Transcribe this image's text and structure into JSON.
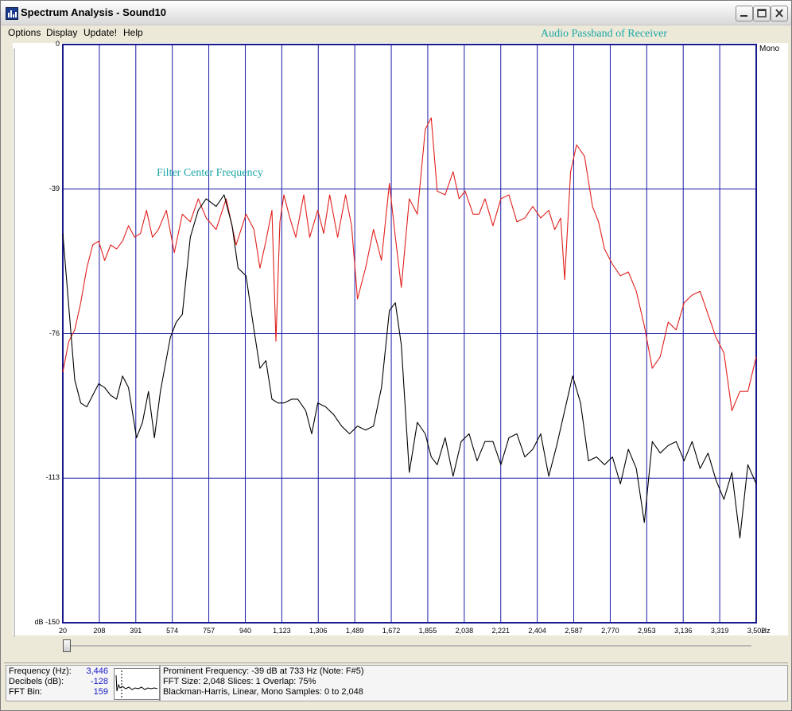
{
  "window": {
    "title": "Spectrum Analysis - Sound10",
    "buttons": [
      "minimize",
      "maximize",
      "close"
    ]
  },
  "menu": {
    "items": [
      "Options",
      "Display",
      "Update!",
      "Help"
    ]
  },
  "annotations": {
    "passband": "Audio Passband of Receiver",
    "center": "Filter Center Frequency"
  },
  "channel_label": "Mono",
  "chart_data": {
    "type": "line",
    "x_unit": "Hz",
    "y_unit": "dB",
    "xlim": [
      20,
      3502
    ],
    "ylim": [
      -150,
      0
    ],
    "y_ticks": [
      "0",
      "-39",
      "-76",
      "-113",
      "dB -150"
    ],
    "x_ticks": [
      "20",
      "208",
      "391",
      "574",
      "757",
      "940",
      "1,123",
      "1,306",
      "1,489",
      "1,672",
      "1,855",
      "2,038",
      "2,221",
      "2,404",
      "2,587",
      "2,770",
      "2,953",
      "3,136",
      "3,319",
      "3,502"
    ],
    "grid": true,
    "series": [
      {
        "color": "#e0201c",
        "points": [
          [
            20,
            -85
          ],
          [
            50,
            -77
          ],
          [
            80,
            -74
          ],
          [
            110,
            -67
          ],
          [
            140,
            -58
          ],
          [
            170,
            -52
          ],
          [
            200,
            -51
          ],
          [
            230,
            -56
          ],
          [
            260,
            -52
          ],
          [
            290,
            -53
          ],
          [
            320,
            -51
          ],
          [
            350,
            -47
          ],
          [
            380,
            -50
          ],
          [
            410,
            -49
          ],
          [
            440,
            -43
          ],
          [
            470,
            -50
          ],
          [
            500,
            -48
          ],
          [
            540,
            -43
          ],
          [
            580,
            -54
          ],
          [
            620,
            -44
          ],
          [
            660,
            -46
          ],
          [
            700,
            -40
          ],
          [
            740,
            -45
          ],
          [
            790,
            -48
          ],
          [
            840,
            -40
          ],
          [
            890,
            -52
          ],
          [
            940,
            -44
          ],
          [
            980,
            -48
          ],
          [
            1010,
            -58
          ],
          [
            1040,
            -51
          ],
          [
            1070,
            -43
          ],
          [
            1090,
            -77
          ],
          [
            1110,
            -46
          ],
          [
            1130,
            -39
          ],
          [
            1160,
            -45
          ],
          [
            1190,
            -50
          ],
          [
            1230,
            -39
          ],
          [
            1260,
            -50
          ],
          [
            1300,
            -43
          ],
          [
            1330,
            -49
          ],
          [
            1360,
            -39
          ],
          [
            1400,
            -50
          ],
          [
            1440,
            -39
          ],
          [
            1470,
            -47
          ],
          [
            1500,
            -66
          ],
          [
            1540,
            -58
          ],
          [
            1580,
            -48
          ],
          [
            1620,
            -56
          ],
          [
            1660,
            -36
          ],
          [
            1690,
            -50
          ],
          [
            1720,
            -63
          ],
          [
            1760,
            -40
          ],
          [
            1800,
            -44
          ],
          [
            1840,
            -22
          ],
          [
            1870,
            -19
          ],
          [
            1900,
            -38
          ],
          [
            1940,
            -39
          ],
          [
            1980,
            -33
          ],
          [
            2010,
            -40
          ],
          [
            2040,
            -38
          ],
          [
            2080,
            -44
          ],
          [
            2110,
            -44
          ],
          [
            2140,
            -40
          ],
          [
            2180,
            -47
          ],
          [
            2220,
            -40
          ],
          [
            2260,
            -39
          ],
          [
            2300,
            -46
          ],
          [
            2340,
            -45
          ],
          [
            2380,
            -42
          ],
          [
            2420,
            -45
          ],
          [
            2460,
            -43
          ],
          [
            2490,
            -48
          ],
          [
            2520,
            -45
          ],
          [
            2540,
            -61
          ],
          [
            2570,
            -33
          ],
          [
            2600,
            -26
          ],
          [
            2640,
            -29
          ],
          [
            2680,
            -42
          ],
          [
            2710,
            -46
          ],
          [
            2740,
            -53
          ],
          [
            2780,
            -57
          ],
          [
            2820,
            -60
          ],
          [
            2860,
            -59
          ],
          [
            2900,
            -64
          ],
          [
            2940,
            -73
          ],
          [
            2980,
            -84
          ],
          [
            3020,
            -81
          ],
          [
            3060,
            -72
          ],
          [
            3100,
            -74
          ],
          [
            3140,
            -67
          ],
          [
            3180,
            -65
          ],
          [
            3220,
            -64
          ],
          [
            3260,
            -70
          ],
          [
            3300,
            -76
          ],
          [
            3340,
            -80
          ],
          [
            3380,
            -95
          ],
          [
            3420,
            -90
          ],
          [
            3460,
            -90
          ],
          [
            3502,
            -81
          ]
        ]
      },
      {
        "color": "#000000",
        "points": [
          [
            20,
            -49
          ],
          [
            50,
            -68
          ],
          [
            80,
            -87
          ],
          [
            110,
            -93
          ],
          [
            140,
            -94
          ],
          [
            170,
            -91
          ],
          [
            200,
            -88
          ],
          [
            230,
            -89
          ],
          [
            260,
            -91
          ],
          [
            290,
            -92
          ],
          [
            320,
            -86
          ],
          [
            350,
            -89
          ],
          [
            390,
            -102
          ],
          [
            420,
            -98
          ],
          [
            450,
            -90
          ],
          [
            480,
            -102
          ],
          [
            510,
            -90
          ],
          [
            560,
            -76
          ],
          [
            590,
            -72
          ],
          [
            620,
            -70
          ],
          [
            660,
            -50
          ],
          [
            700,
            -43
          ],
          [
            740,
            -40
          ],
          [
            790,
            -42
          ],
          [
            830,
            -39
          ],
          [
            870,
            -47
          ],
          [
            900,
            -58
          ],
          [
            940,
            -60
          ],
          [
            980,
            -74
          ],
          [
            1010,
            -84
          ],
          [
            1040,
            -82
          ],
          [
            1070,
            -92
          ],
          [
            1100,
            -93
          ],
          [
            1130,
            -93
          ],
          [
            1170,
            -92
          ],
          [
            1200,
            -92
          ],
          [
            1240,
            -95
          ],
          [
            1270,
            -101
          ],
          [
            1300,
            -93
          ],
          [
            1340,
            -94
          ],
          [
            1380,
            -96
          ],
          [
            1420,
            -99
          ],
          [
            1460,
            -101
          ],
          [
            1500,
            -99
          ],
          [
            1540,
            -100
          ],
          [
            1580,
            -99
          ],
          [
            1620,
            -89
          ],
          [
            1660,
            -69
          ],
          [
            1690,
            -67
          ],
          [
            1720,
            -78
          ],
          [
            1760,
            -111
          ],
          [
            1800,
            -98
          ],
          [
            1840,
            -101
          ],
          [
            1870,
            -107
          ],
          [
            1900,
            -109
          ],
          [
            1940,
            -102
          ],
          [
            1980,
            -112
          ],
          [
            2020,
            -103
          ],
          [
            2060,
            -101
          ],
          [
            2100,
            -108
          ],
          [
            2140,
            -103
          ],
          [
            2180,
            -103
          ],
          [
            2220,
            -109
          ],
          [
            2260,
            -102
          ],
          [
            2300,
            -101
          ],
          [
            2340,
            -107
          ],
          [
            2380,
            -105
          ],
          [
            2420,
            -101
          ],
          [
            2460,
            -112
          ],
          [
            2500,
            -104
          ],
          [
            2540,
            -95
          ],
          [
            2580,
            -86
          ],
          [
            2620,
            -93
          ],
          [
            2660,
            -108
          ],
          [
            2700,
            -107
          ],
          [
            2740,
            -109
          ],
          [
            2780,
            -107
          ],
          [
            2820,
            -114
          ],
          [
            2860,
            -105
          ],
          [
            2900,
            -110
          ],
          [
            2940,
            -124
          ],
          [
            2980,
            -103
          ],
          [
            3020,
            -106
          ],
          [
            3060,
            -104
          ],
          [
            3100,
            -103
          ],
          [
            3140,
            -108
          ],
          [
            3180,
            -103
          ],
          [
            3220,
            -110
          ],
          [
            3260,
            -106
          ],
          [
            3300,
            -113
          ],
          [
            3340,
            -118
          ],
          [
            3380,
            -111
          ],
          [
            3420,
            -128
          ],
          [
            3460,
            -109
          ],
          [
            3502,
            -114
          ]
        ]
      }
    ]
  },
  "status": {
    "freq_label": "Frequency (Hz):",
    "freq_value": "3,446",
    "db_label": "Decibels (dB):",
    "db_value": "-128",
    "bin_label": "FFT Bin:",
    "bin_value": "159",
    "line1": "Prominent Frequency: -39 dB at 733 Hz (Note: F#5)",
    "line2": "FFT Size: 2,048  Slices: 1  Overlap: 75%",
    "line3": "Blackman-Harris, Linear, Mono  Samples: 0 to 2,048"
  }
}
